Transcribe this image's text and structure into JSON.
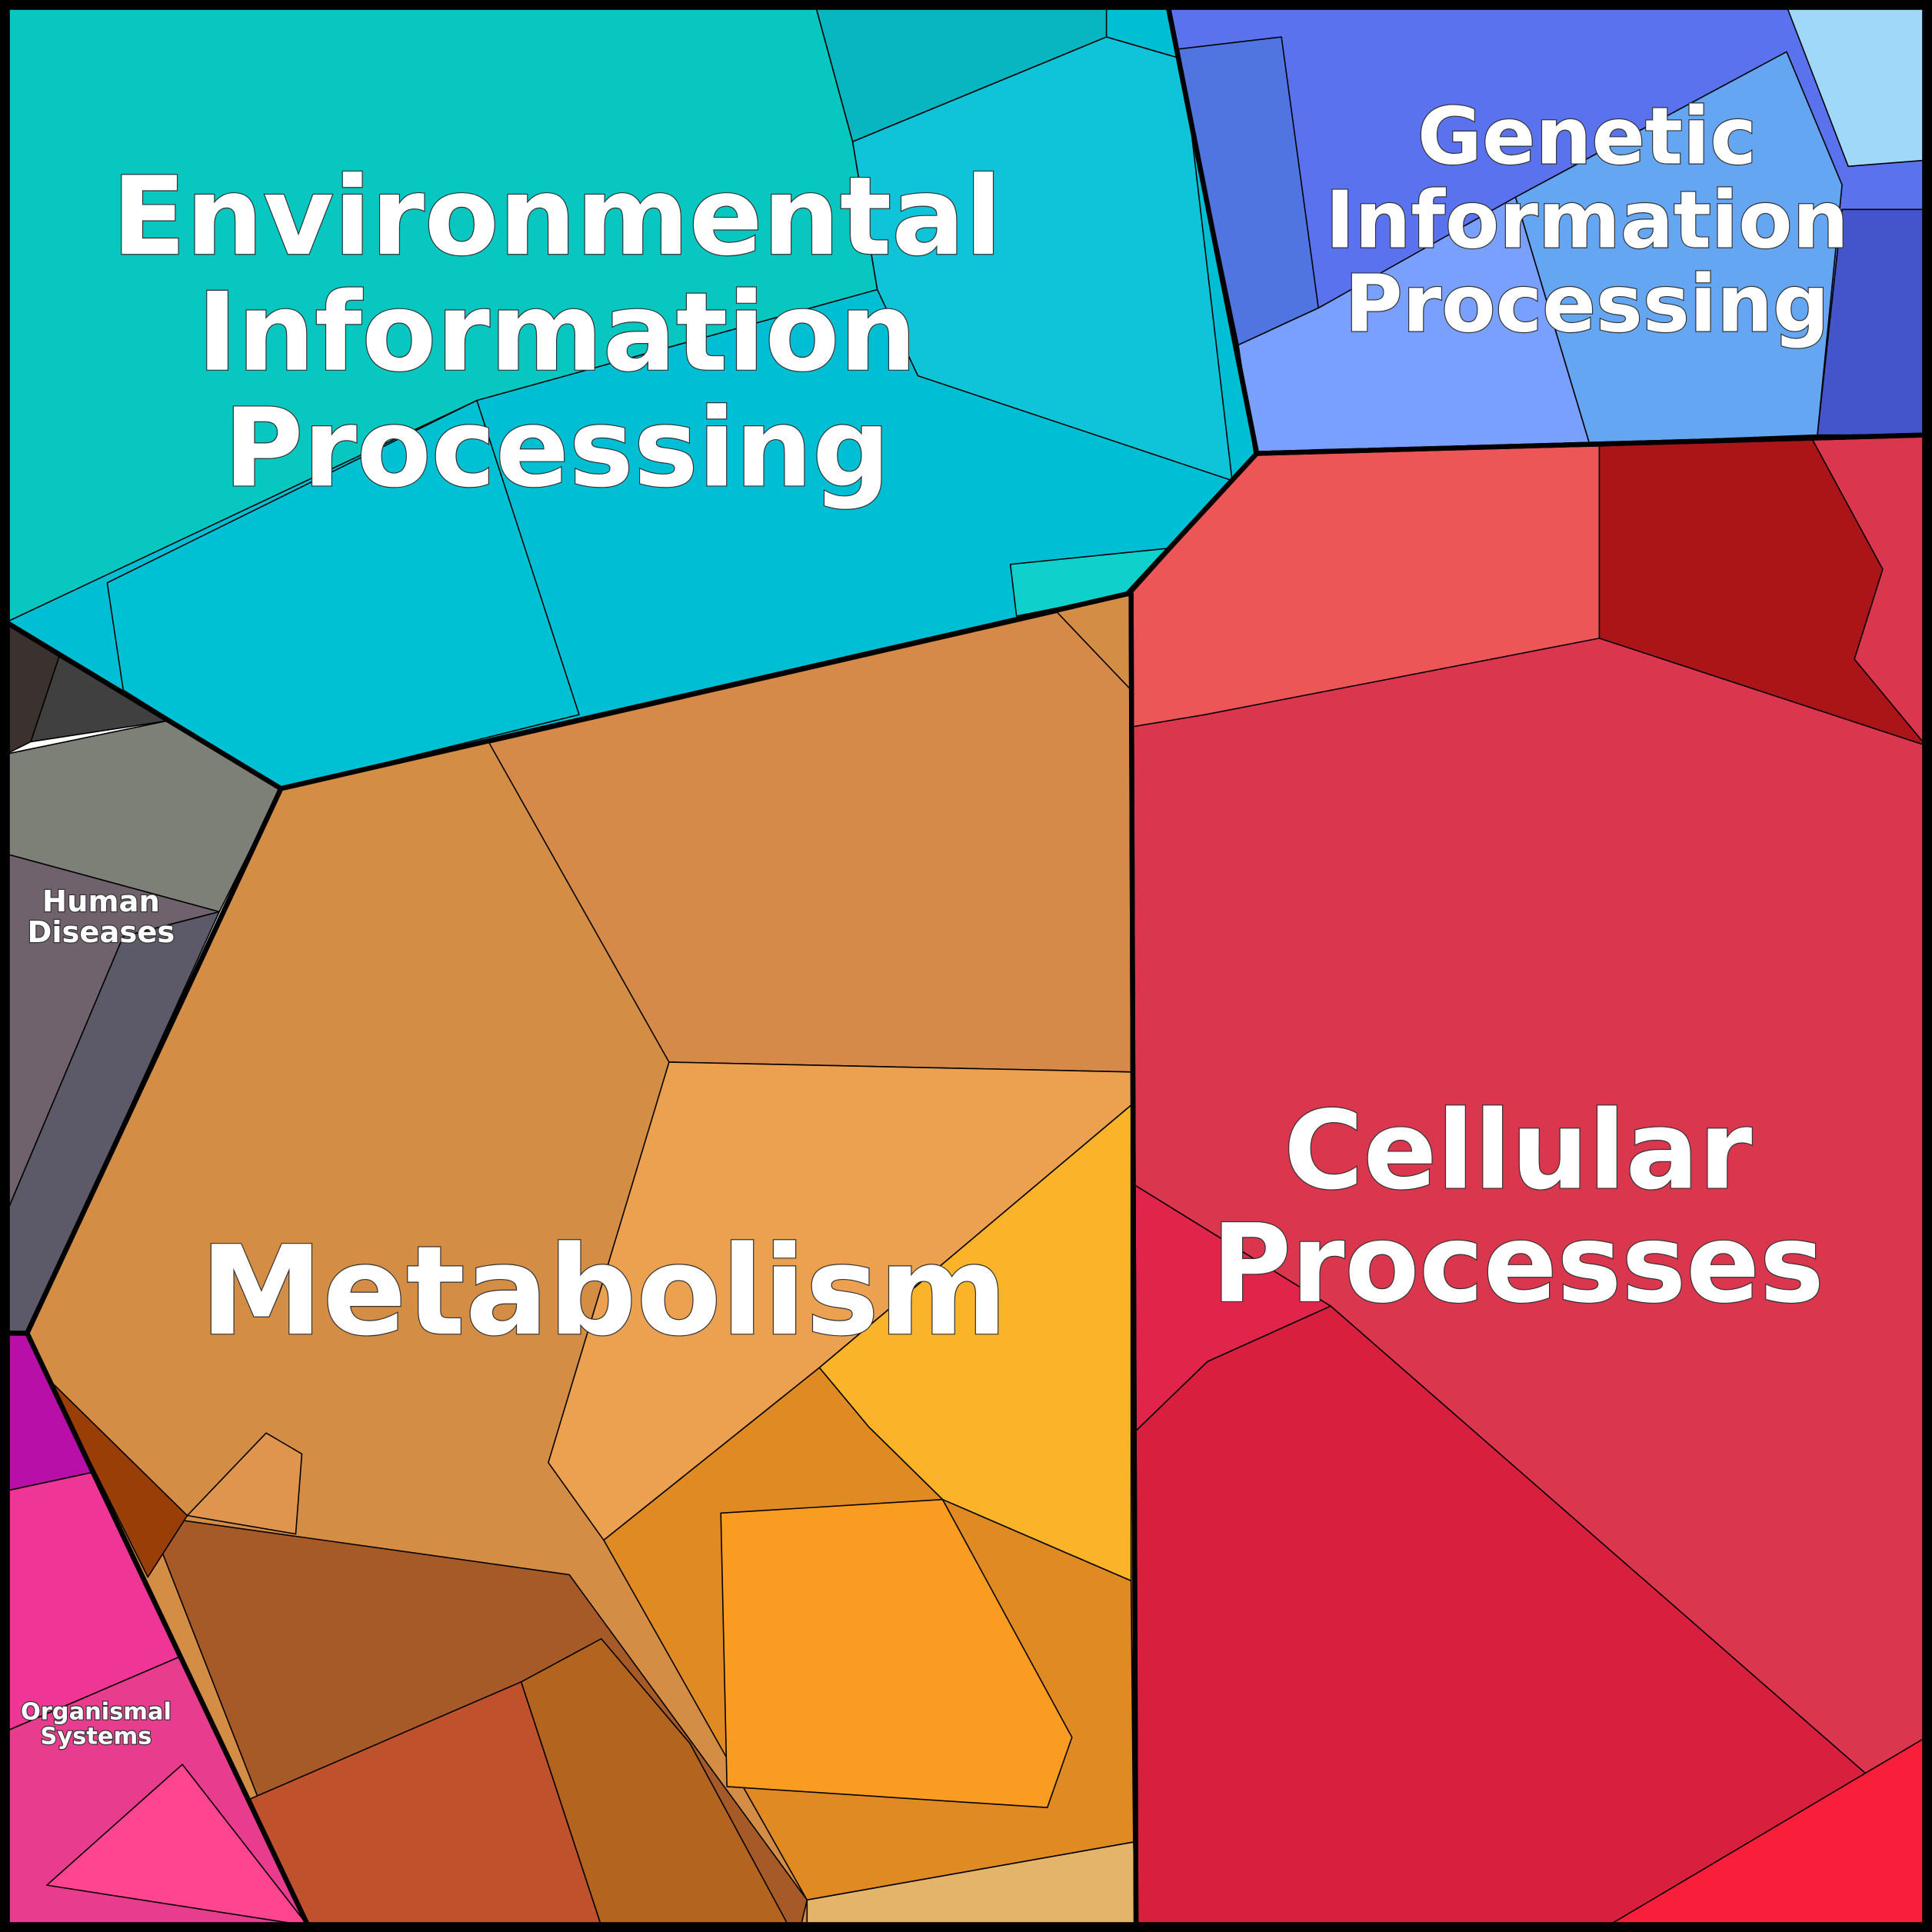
{
  "regions": [
    {
      "lines": [
        "Environmental",
        "Information",
        "Processing"
      ]
    },
    {
      "lines": [
        "Genetic",
        "Information",
        "Processing"
      ]
    },
    {
      "lines": [
        "Cellular",
        "Processes"
      ]
    },
    {
      "lines": [
        "Metabolism"
      ]
    },
    {
      "lines": [
        "Human",
        "Diseases"
      ]
    },
    {
      "lines": [
        "Organismal",
        "Systems"
      ]
    }
  ]
}
